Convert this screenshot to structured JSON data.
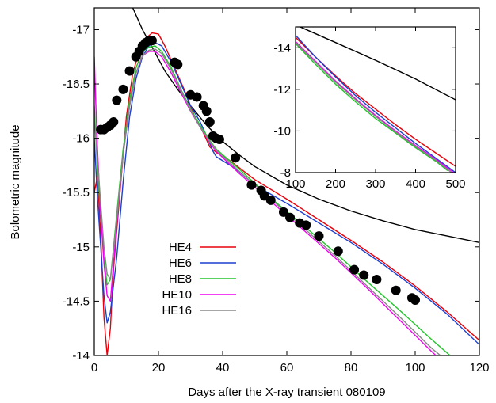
{
  "chart_data": [
    {
      "type": "line",
      "xlabel": "Days after the X-ray transient 080109",
      "ylabel": "Bolometric magnitude",
      "xlim": [
        0,
        120
      ],
      "ylim": [
        -14,
        -17.2
      ],
      "y_axis_inverted": true,
      "x_ticks": [
        "0",
        "20",
        "40",
        "60",
        "80",
        "100",
        "120"
      ],
      "y_ticks": [
        "-14",
        "-14.5",
        "-15",
        "-15.5",
        "-16",
        "-16.5",
        "-17"
      ],
      "legend": "lower-left",
      "grid": false,
      "observations": {
        "marker": "filled-circle",
        "color": "#000000",
        "points": [
          [
            2,
            -16.08
          ],
          [
            3,
            -16.08
          ],
          [
            4,
            -16.1
          ],
          [
            5,
            -16.12
          ],
          [
            6,
            -16.15
          ],
          [
            7,
            -16.35
          ],
          [
            9,
            -16.45
          ],
          [
            11,
            -16.62
          ],
          [
            13,
            -16.75
          ],
          [
            14,
            -16.8
          ],
          [
            15,
            -16.85
          ],
          [
            16,
            -16.88
          ],
          [
            17,
            -16.9
          ],
          [
            18,
            -16.9
          ],
          [
            25,
            -16.7
          ],
          [
            26,
            -16.68
          ],
          [
            30,
            -16.4
          ],
          [
            32,
            -16.38
          ],
          [
            34,
            -16.3
          ],
          [
            35,
            -16.25
          ],
          [
            36,
            -16.15
          ],
          [
            37,
            -16.02
          ],
          [
            38,
            -16.0
          ],
          [
            39,
            -15.99
          ],
          [
            44,
            -15.82
          ],
          [
            49,
            -15.57
          ],
          [
            52,
            -15.52
          ],
          [
            53,
            -15.47
          ],
          [
            55,
            -15.43
          ],
          [
            59,
            -15.32
          ],
          [
            61,
            -15.27
          ],
          [
            64,
            -15.22
          ],
          [
            66,
            -15.2
          ],
          [
            70,
            -15.1
          ],
          [
            76,
            -14.96
          ],
          [
            81,
            -14.79
          ],
          [
            84,
            -14.74
          ],
          [
            88,
            -14.7
          ],
          [
            94,
            -14.6
          ],
          [
            99,
            -14.53
          ],
          [
            100,
            -14.51
          ]
        ]
      },
      "fit_curve": {
        "color": "#000000",
        "points": [
          [
            10,
            -17.4
          ],
          [
            12,
            -17.2
          ],
          [
            15,
            -17.0
          ],
          [
            18,
            -16.84
          ],
          [
            22,
            -16.62
          ],
          [
            26,
            -16.45
          ],
          [
            30,
            -16.3
          ],
          [
            35,
            -16.12
          ],
          [
            40,
            -15.97
          ],
          [
            45,
            -15.85
          ],
          [
            50,
            -15.74
          ],
          [
            60,
            -15.57
          ],
          [
            70,
            -15.44
          ],
          [
            80,
            -15.33
          ],
          [
            90,
            -15.24
          ],
          [
            100,
            -15.16
          ],
          [
            110,
            -15.1
          ],
          [
            120,
            -15.04
          ]
        ]
      },
      "series": [
        {
          "name": "HE4",
          "color": "#e8000b",
          "points": [
            [
              0,
              -15.5
            ],
            [
              1,
              -15.65
            ],
            [
              2,
              -15.1
            ],
            [
              3,
              -14.35
            ],
            [
              4,
              -14.0
            ],
            [
              5,
              -14.25
            ],
            [
              6,
              -14.8
            ],
            [
              8,
              -15.5
            ],
            [
              10,
              -16.2
            ],
            [
              12,
              -16.6
            ],
            [
              14,
              -16.8
            ],
            [
              16,
              -16.92
            ],
            [
              18,
              -16.97
            ],
            [
              20,
              -16.96
            ],
            [
              22,
              -16.85
            ],
            [
              25,
              -16.65
            ],
            [
              28,
              -16.45
            ],
            [
              31,
              -16.22
            ],
            [
              34,
              -16.05
            ],
            [
              36,
              -15.92
            ],
            [
              38,
              -15.87
            ],
            [
              42,
              -15.8
            ],
            [
              50,
              -15.62
            ],
            [
              60,
              -15.44
            ],
            [
              70,
              -15.25
            ],
            [
              80,
              -15.06
            ],
            [
              90,
              -14.86
            ],
            [
              100,
              -14.64
            ],
            [
              110,
              -14.4
            ],
            [
              120,
              -14.14
            ]
          ]
        },
        {
          "name": "HE6",
          "color": "#1c3fd0",
          "points": [
            [
              0,
              -16.0
            ],
            [
              1,
              -15.45
            ],
            [
              2,
              -15.0
            ],
            [
              3,
              -14.55
            ],
            [
              4,
              -14.3
            ],
            [
              5,
              -14.4
            ],
            [
              7,
              -14.9
            ],
            [
              9,
              -15.6
            ],
            [
              11,
              -16.2
            ],
            [
              13,
              -16.55
            ],
            [
              15,
              -16.75
            ],
            [
              17,
              -16.85
            ],
            [
              19,
              -16.88
            ],
            [
              21,
              -16.85
            ],
            [
              24,
              -16.7
            ],
            [
              27,
              -16.5
            ],
            [
              30,
              -16.3
            ],
            [
              33,
              -16.15
            ],
            [
              35,
              -16.02
            ],
            [
              37,
              -15.88
            ],
            [
              38,
              -15.83
            ],
            [
              44,
              -15.72
            ],
            [
              50,
              -15.57
            ],
            [
              60,
              -15.4
            ],
            [
              70,
              -15.22
            ],
            [
              80,
              -15.04
            ],
            [
              90,
              -14.84
            ],
            [
              100,
              -14.62
            ],
            [
              110,
              -14.38
            ],
            [
              120,
              -14.1
            ]
          ]
        },
        {
          "name": "HE8",
          "color": "#22c42a",
          "points": [
            [
              0,
              -16.3
            ],
            [
              1,
              -15.7
            ],
            [
              2,
              -15.3
            ],
            [
              3,
              -14.9
            ],
            [
              4,
              -14.65
            ],
            [
              5,
              -14.7
            ],
            [
              7,
              -15.3
            ],
            [
              9,
              -15.9
            ],
            [
              11,
              -16.35
            ],
            [
              13,
              -16.65
            ],
            [
              15,
              -16.8
            ],
            [
              17,
              -16.84
            ],
            [
              19,
              -16.85
            ],
            [
              21,
              -16.8
            ],
            [
              24,
              -16.65
            ],
            [
              27,
              -16.45
            ],
            [
              30,
              -16.27
            ],
            [
              33,
              -16.12
            ],
            [
              36,
              -15.98
            ],
            [
              38,
              -15.9
            ],
            [
              45,
              -15.72
            ],
            [
              55,
              -15.45
            ],
            [
              65,
              -15.2
            ],
            [
              75,
              -14.95
            ],
            [
              85,
              -14.68
            ],
            [
              95,
              -14.42
            ],
            [
              105,
              -14.15
            ],
            [
              114,
              -13.92
            ]
          ]
        },
        {
          "name": "HE10",
          "color": "#f000f0",
          "points": [
            [
              0,
              -16.75
            ],
            [
              0.5,
              -16.3
            ],
            [
              1,
              -15.9
            ],
            [
              2,
              -15.3
            ],
            [
              3,
              -14.85
            ],
            [
              4,
              -14.55
            ],
            [
              5,
              -14.5
            ],
            [
              7,
              -15.2
            ],
            [
              9,
              -15.85
            ],
            [
              11,
              -16.3
            ],
            [
              13,
              -16.6
            ],
            [
              15,
              -16.76
            ],
            [
              17,
              -16.8
            ],
            [
              19,
              -16.8
            ],
            [
              21,
              -16.75
            ],
            [
              24,
              -16.6
            ],
            [
              27,
              -16.42
            ],
            [
              30,
              -16.25
            ],
            [
              33,
              -16.1
            ],
            [
              36,
              -15.96
            ],
            [
              38,
              -15.88
            ],
            [
              45,
              -15.68
            ],
            [
              55,
              -15.42
            ],
            [
              65,
              -15.16
            ],
            [
              75,
              -14.9
            ],
            [
              85,
              -14.62
            ],
            [
              95,
              -14.33
            ],
            [
              105,
              -14.04
            ],
            [
              112,
              -13.85
            ]
          ]
        },
        {
          "name": "HE16",
          "color": "#888888",
          "points": [
            [
              0,
              -16.2
            ],
            [
              1,
              -15.8
            ],
            [
              2,
              -15.4
            ],
            [
              3,
              -15.0
            ],
            [
              4,
              -14.75
            ],
            [
              5,
              -14.7
            ],
            [
              7,
              -15.25
            ],
            [
              9,
              -15.85
            ],
            [
              11,
              -16.3
            ],
            [
              13,
              -16.6
            ],
            [
              15,
              -16.76
            ],
            [
              17,
              -16.81
            ],
            [
              19,
              -16.82
            ],
            [
              21,
              -16.78
            ],
            [
              24,
              -16.63
            ],
            [
              27,
              -16.44
            ],
            [
              30,
              -16.26
            ],
            [
              33,
              -16.1
            ],
            [
              36,
              -15.97
            ],
            [
              38,
              -15.89
            ],
            [
              45,
              -15.7
            ],
            [
              55,
              -15.44
            ],
            [
              65,
              -15.18
            ],
            [
              75,
              -14.92
            ],
            [
              85,
              -14.64
            ],
            [
              95,
              -14.36
            ],
            [
              105,
              -14.07
            ],
            [
              114,
              -13.85
            ]
          ]
        }
      ]
    },
    {
      "type": "line",
      "role": "inset",
      "xlim": [
        100,
        500
      ],
      "ylim": [
        -8,
        -15
      ],
      "y_axis_inverted": true,
      "x_ticks": [
        "100",
        "200",
        "300",
        "400",
        "500"
      ],
      "y_ticks": [
        "-8",
        "-10",
        "-12",
        "-14"
      ],
      "fit_curve": {
        "color": "#000000",
        "points": [
          [
            100,
            -15.1
          ],
          [
            200,
            -14.25
          ],
          [
            300,
            -13.4
          ],
          [
            400,
            -12.5
          ],
          [
            500,
            -11.5
          ]
        ]
      },
      "series": [
        {
          "name": "HE4",
          "color": "#e8000b",
          "points": [
            [
              100,
              -14.5
            ],
            [
              150,
              -13.55
            ],
            [
              200,
              -12.65
            ],
            [
              250,
              -11.8
            ],
            [
              300,
              -11.05
            ],
            [
              350,
              -10.3
            ],
            [
              400,
              -9.6
            ],
            [
              450,
              -8.95
            ],
            [
              500,
              -8.3
            ]
          ]
        },
        {
          "name": "HE6",
          "color": "#1c3fd0",
          "points": [
            [
              100,
              -14.6
            ],
            [
              150,
              -13.55
            ],
            [
              200,
              -12.6
            ],
            [
              250,
              -11.7
            ],
            [
              300,
              -10.9
            ],
            [
              350,
              -10.15
            ],
            [
              400,
              -9.4
            ],
            [
              450,
              -8.7
            ],
            [
              500,
              -8.0
            ]
          ]
        },
        {
          "name": "HE8",
          "color": "#22c42a",
          "points": [
            [
              100,
              -14.2
            ],
            [
              150,
              -13.2
            ],
            [
              200,
              -12.25
            ],
            [
              250,
              -11.4
            ],
            [
              300,
              -10.6
            ],
            [
              350,
              -9.9
            ],
            [
              400,
              -9.2
            ],
            [
              450,
              -8.55
            ],
            [
              480,
              -8.1
            ]
          ]
        },
        {
          "name": "HE10",
          "color": "#f000f0",
          "points": [
            [
              100,
              -14.3
            ],
            [
              150,
              -13.35
            ],
            [
              200,
              -12.4
            ],
            [
              250,
              -11.55
            ],
            [
              300,
              -10.75
            ],
            [
              350,
              -10.0
            ],
            [
              400,
              -9.3
            ],
            [
              450,
              -8.65
            ],
            [
              495,
              -8.0
            ]
          ]
        },
        {
          "name": "HE16",
          "color": "#888888",
          "points": [
            [
              100,
              -14.25
            ],
            [
              150,
              -13.3
            ],
            [
              200,
              -12.35
            ],
            [
              250,
              -11.5
            ],
            [
              300,
              -10.7
            ],
            [
              350,
              -9.95
            ],
            [
              400,
              -9.25
            ],
            [
              450,
              -8.6
            ],
            [
              490,
              -8.0
            ]
          ]
        }
      ]
    }
  ]
}
